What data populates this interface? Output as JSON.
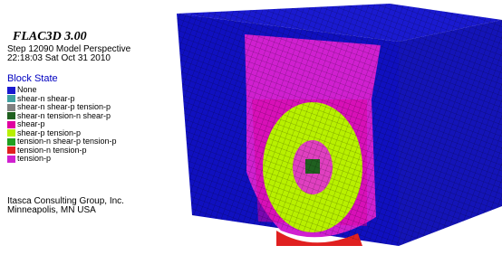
{
  "header": {
    "title": "FLAC3D 3.00",
    "step": "Step 12090 Model Perspective",
    "timestamp": "22:18:03 Sat Oct 31 2010"
  },
  "legend": {
    "title": "Block State",
    "items": [
      {
        "label": "None",
        "color": "#1a1ad0"
      },
      {
        "label": "shear-n shear-p",
        "color": "#40a0a0"
      },
      {
        "label": "shear-n shear-p tension-p",
        "color": "#808080"
      },
      {
        "label": "shear-n tension-n shear-p",
        "color": "#206020"
      },
      {
        "label": "shear-p",
        "color": "#e000a0"
      },
      {
        "label": "shear-p tension-p",
        "color": "#b8f000"
      },
      {
        "label": "tension-n shear-p tension-p",
        "color": "#20a020"
      },
      {
        "label": "tension-n tension-p",
        "color": "#e02020"
      },
      {
        "label": "tension-p",
        "color": "#d020d0"
      }
    ]
  },
  "footer": {
    "company": "Itasca Consulting Group, Inc.",
    "location": "Minneapolis, MN USA"
  }
}
